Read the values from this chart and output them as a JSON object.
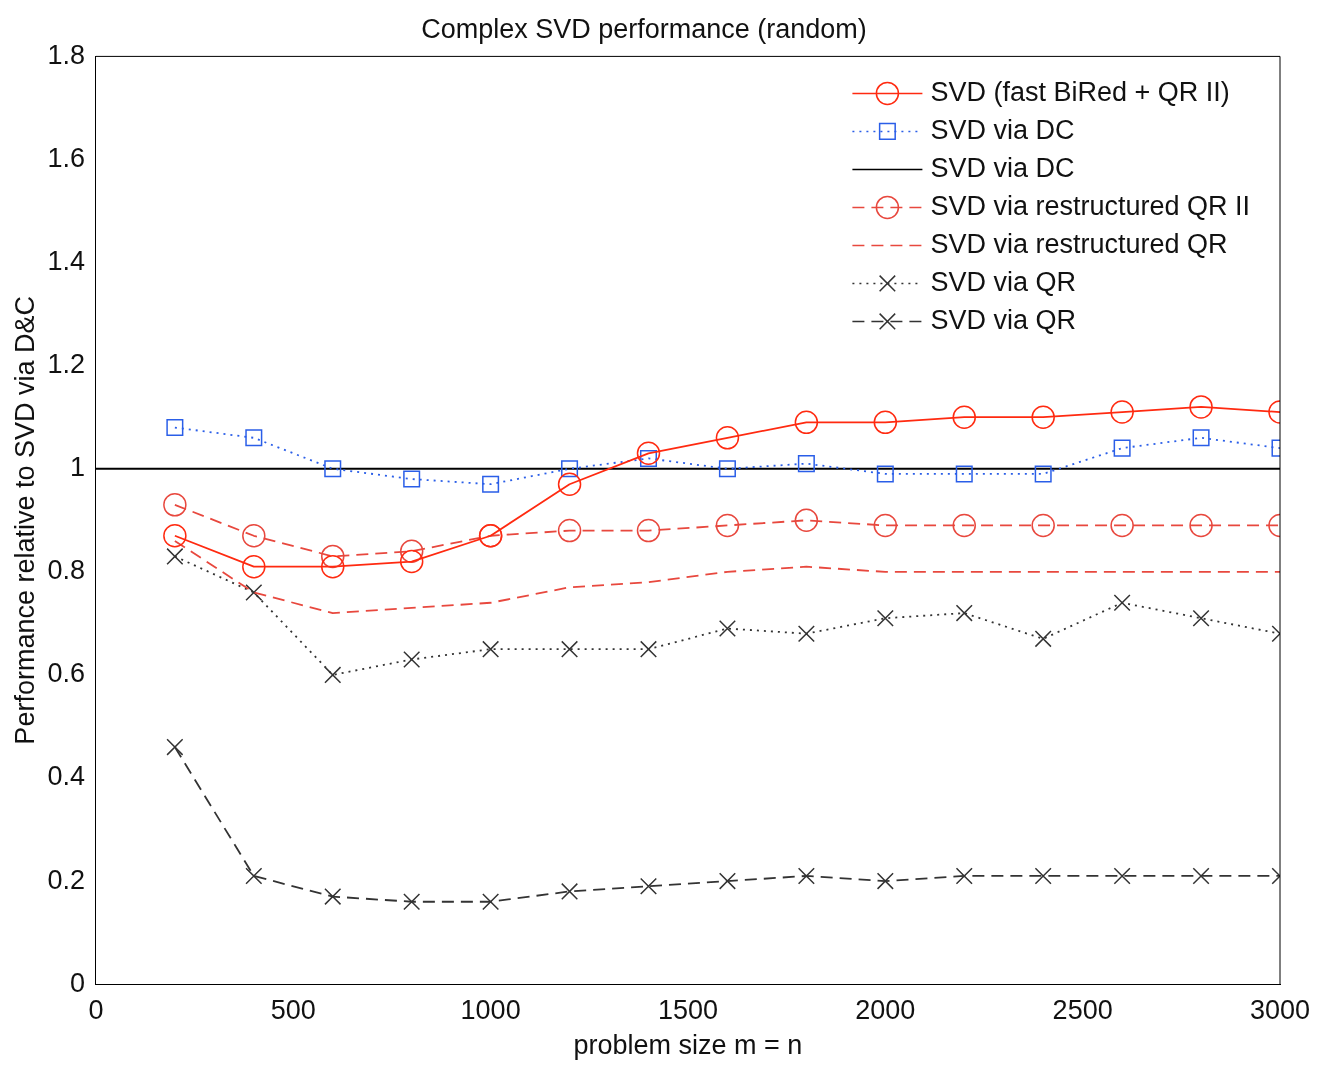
{
  "chart_data": {
    "type": "line",
    "title": "Complex SVD performance (random)",
    "xlabel": "problem size m = n",
    "ylabel": "Performance relative to SVD via D&C",
    "x": [
      200,
      400,
      600,
      800,
      1000,
      1200,
      1400,
      1600,
      1800,
      2000,
      2200,
      2400,
      2600,
      2800,
      3000
    ],
    "xlim": [
      0,
      3000
    ],
    "xticks": [
      0,
      500,
      1000,
      1500,
      2000,
      2500,
      3000
    ],
    "ylim": [
      0,
      1.8
    ],
    "yticks": [
      0,
      0.2,
      0.4,
      0.6,
      0.8,
      1,
      1.2,
      1.4,
      1.6,
      1.8
    ],
    "grid": false,
    "legend": "top right",
    "series": [
      {
        "name": "SVD (fast BiRed + QR II)",
        "color": "#ff2a10",
        "marker": "circle",
        "line_style": "solid",
        "values": [
          0.87,
          0.81,
          0.81,
          0.82,
          0.87,
          0.97,
          1.03,
          1.06,
          1.09,
          1.09,
          1.1,
          1.1,
          1.11,
          1.12,
          1.11
        ]
      },
      {
        "name": "SVD via DC",
        "color": "#2a5ee8",
        "marker": "square",
        "line_style": "dotted",
        "values": [
          1.08,
          1.06,
          1,
          0.98,
          0.97,
          1,
          1.02,
          1,
          1.01,
          0.99,
          0.99,
          0.99,
          1.04,
          1.06,
          1.04
        ]
      },
      {
        "name": "SVD via DC",
        "color": "#000000",
        "marker": "none",
        "line_style": "solid",
        "x": [
          0,
          3000
        ],
        "values": [
          1,
          1
        ]
      },
      {
        "name": "SVD via restructured QR II",
        "color": "#e8483e",
        "marker": "circle",
        "line_style": "dashed",
        "values": [
          0.93,
          0.87,
          0.83,
          0.84,
          0.87,
          0.88,
          0.88,
          0.89,
          0.9,
          0.89,
          0.89,
          0.89,
          0.89,
          0.89,
          0.89
        ]
      },
      {
        "name": "SVD via restructured QR",
        "color": "#e8483e",
        "marker": "none",
        "line_style": "dashed",
        "values": [
          0.86,
          0.76,
          0.72,
          0.73,
          0.74,
          0.77,
          0.78,
          0.8,
          0.81,
          0.8,
          0.8,
          0.8,
          0.8,
          0.8,
          0.8
        ]
      },
      {
        "name": "SVD via QR",
        "color": "#333333",
        "marker": "cross",
        "line_style": "dotted",
        "values": [
          0.83,
          0.76,
          0.6,
          0.63,
          0.65,
          0.65,
          0.65,
          0.69,
          0.68,
          0.71,
          0.72,
          0.67,
          0.74,
          0.71,
          0.68
        ]
      },
      {
        "name": "SVD via QR",
        "color": "#333333",
        "marker": "cross",
        "line_style": "dashed",
        "values": [
          0.46,
          0.21,
          0.17,
          0.16,
          0.16,
          0.18,
          0.19,
          0.2,
          0.21,
          0.2,
          0.21,
          0.21,
          0.21,
          0.21,
          0.21
        ]
      }
    ]
  }
}
